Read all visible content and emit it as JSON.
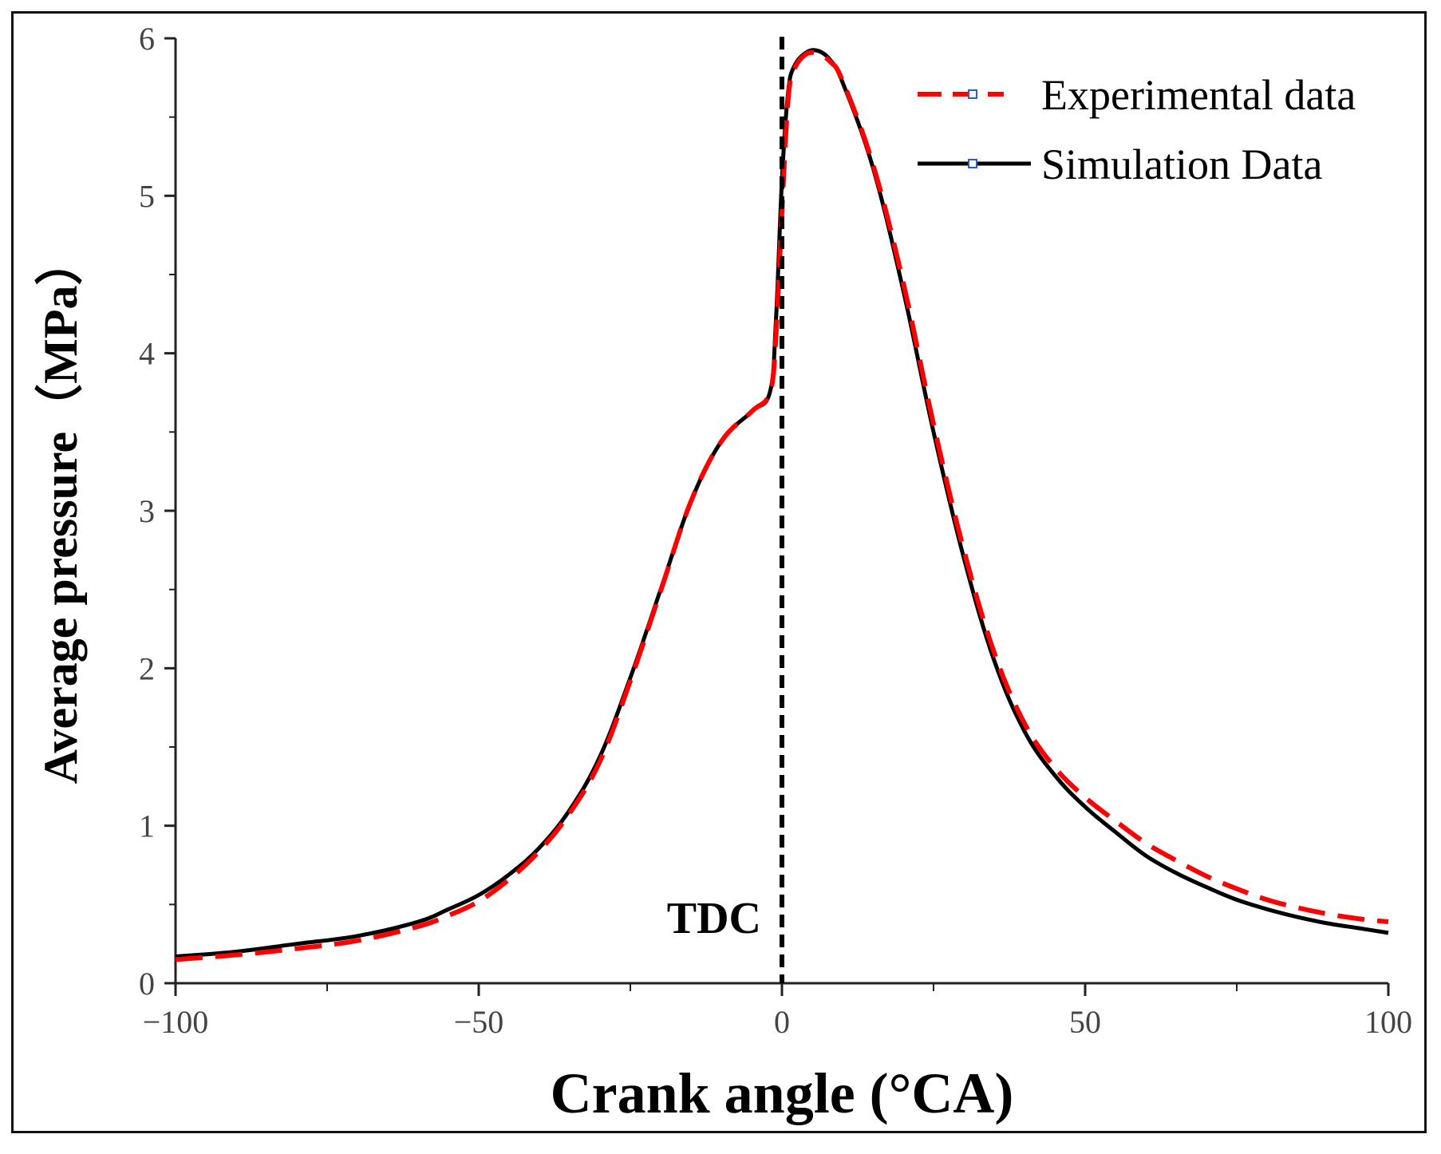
{
  "chart_data": {
    "type": "line",
    "xlabel": "Crank angle (°CA)",
    "ylabel": "Average pressure（MPa）",
    "xlim": [
      -100,
      100
    ],
    "ylim": [
      0,
      6
    ],
    "xticks": [
      -100,
      -50,
      0,
      50,
      100
    ],
    "yticks": [
      0,
      1,
      2,
      3,
      4,
      5,
      6
    ],
    "x_tick_labels": [
      "−100",
      "−50",
      "0",
      "50",
      "100"
    ],
    "y_tick_labels": [
      "0",
      "1",
      "2",
      "3",
      "4",
      "5",
      "6"
    ],
    "grid": false,
    "legend_position": "top-right",
    "annotation": {
      "text": "TDC",
      "x": 0
    },
    "series": [
      {
        "name": "Experimental data",
        "color": "#ff0000",
        "style": "dashed",
        "x": [
          -100,
          -90,
          -80,
          -70,
          -60,
          -55,
          -50,
          -45,
          -40,
          -35,
          -30,
          -25,
          -20,
          -15,
          -10,
          -5,
          -2,
          -1,
          0,
          1,
          2,
          4,
          6,
          8,
          10,
          15,
          20,
          25,
          30,
          35,
          40,
          45,
          50,
          55,
          60,
          65,
          70,
          75,
          80,
          85,
          90,
          95,
          100
        ],
        "y": [
          0.15,
          0.18,
          0.22,
          0.27,
          0.36,
          0.43,
          0.52,
          0.66,
          0.84,
          1.08,
          1.41,
          1.92,
          2.49,
          3.06,
          3.44,
          3.63,
          3.75,
          4.1,
          4.9,
          5.6,
          5.8,
          5.9,
          5.9,
          5.85,
          5.73,
          5.2,
          4.45,
          3.55,
          2.75,
          2.1,
          1.65,
          1.37,
          1.18,
          1.03,
          0.89,
          0.78,
          0.68,
          0.6,
          0.53,
          0.48,
          0.44,
          0.41,
          0.39
        ]
      },
      {
        "name": "Simulation Data",
        "color": "#000000",
        "style": "solid",
        "x": [
          -100,
          -90,
          -80,
          -70,
          -60,
          -55,
          -50,
          -45,
          -40,
          -35,
          -30,
          -25,
          -20,
          -15,
          -10,
          -5,
          -2,
          -1,
          0,
          1,
          2,
          4,
          6,
          8,
          10,
          15,
          20,
          25,
          30,
          35,
          40,
          45,
          50,
          55,
          60,
          65,
          70,
          75,
          80,
          85,
          90,
          95,
          100
        ],
        "y": [
          0.17,
          0.2,
          0.25,
          0.3,
          0.39,
          0.47,
          0.56,
          0.69,
          0.86,
          1.1,
          1.44,
          1.94,
          2.5,
          3.06,
          3.44,
          3.63,
          3.75,
          4.2,
          5.1,
          5.65,
          5.82,
          5.91,
          5.92,
          5.86,
          5.72,
          5.18,
          4.4,
          3.5,
          2.7,
          2.05,
          1.6,
          1.32,
          1.12,
          0.96,
          0.81,
          0.7,
          0.61,
          0.53,
          0.47,
          0.42,
          0.38,
          0.35,
          0.32
        ]
      }
    ]
  }
}
